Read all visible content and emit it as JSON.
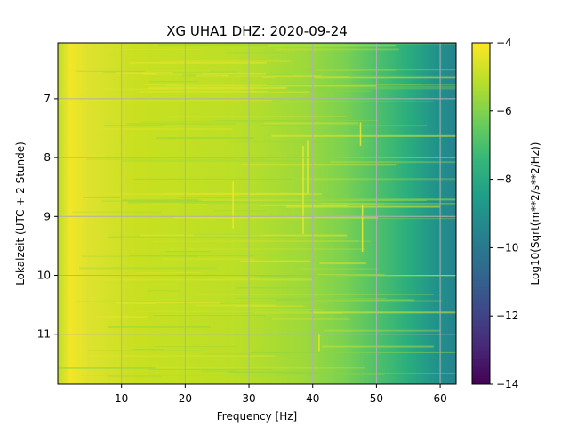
{
  "chart_data": {
    "type": "heatmap",
    "title": "XG UHA1  DHZ: 2020-09-24",
    "xlabel": "Frequency [Hz]",
    "ylabel": "Lokalzeit (UTC + 2 Stunde)",
    "xlim": [
      0,
      62.5
    ],
    "ylim": [
      11.85,
      6.05
    ],
    "xticks": [
      10,
      20,
      30,
      40,
      50,
      60
    ],
    "yticks": [
      7,
      8,
      9,
      10,
      11
    ],
    "grid": true,
    "colormap": "viridis",
    "colorbar": {
      "label": "Log10(Sqrt(m**2/s**2/Hz))",
      "range": [
        -14,
        -4
      ],
      "ticks": [
        -14,
        -12,
        -10,
        -8,
        -6,
        -4
      ]
    },
    "description_profile": [
      {
        "freq_hz": 0.5,
        "value": -5.5
      },
      {
        "freq_hz": 3,
        "value": -4.9
      },
      {
        "freq_hz": 10,
        "value": -5.2
      },
      {
        "freq_hz": 30,
        "value": -5.3
      },
      {
        "freq_hz": 45,
        "value": -5.6
      },
      {
        "freq_hz": 50,
        "value": -6.2
      },
      {
        "freq_hz": 55,
        "value": -7.0
      },
      {
        "freq_hz": 60,
        "value": -8.5
      },
      {
        "freq_hz": 62.5,
        "value": -9.3
      }
    ]
  },
  "colors": {
    "grid": "#b0b0b0",
    "viridis": [
      "#440154",
      "#482878",
      "#3e4989",
      "#31688e",
      "#26828e",
      "#1f9e89",
      "#35b779",
      "#6ece58",
      "#b5de2b",
      "#fde725"
    ]
  }
}
